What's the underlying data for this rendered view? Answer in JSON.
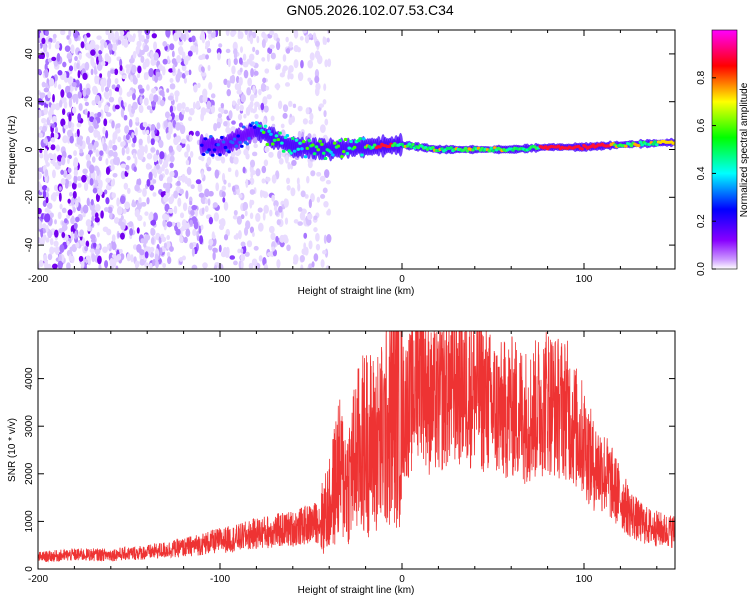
{
  "title": "GN05.2026.102.07.53.C34",
  "colors": {
    "signal": "#ee3333",
    "frame": "#000000"
  },
  "chart_data": [
    {
      "type": "heatmap",
      "name": "spectrogram",
      "xlabel": "Height of straight line (km)",
      "ylabel": "Frequency (Hz)",
      "xlim": [
        -200,
        150
      ],
      "ylim": [
        -50,
        50
      ],
      "xticks": [
        "-200",
        "-100",
        "0",
        "100"
      ],
      "xtick_values": [
        -200,
        -100,
        0,
        100
      ],
      "yticks": [
        "-40",
        "-20",
        "0",
        "20",
        "40"
      ],
      "ytick_values": [
        -40,
        -20,
        0,
        20,
        40
      ],
      "colorbar": {
        "label": "Normalized spectral amplitude",
        "range": [
          0,
          1
        ],
        "ticks": [
          "0.0",
          "0.2",
          "0.4",
          "0.6",
          "0.8"
        ],
        "tick_values": [
          0,
          0.2,
          0.4,
          0.6,
          0.8
        ],
        "colormap": [
          "#ffffff",
          "#cc99ff",
          "#8800ff",
          "#0000ff",
          "#00ffff",
          "#00ff00",
          "#ffff00",
          "#ff0000",
          "#ff00ff"
        ]
      },
      "description_series": {
        "noise_region_km": [
          -200,
          -40
        ],
        "onset_km": -80,
        "signal_trace_freq_hz": [
          [
            -110,
            2
          ],
          [
            -100,
            1
          ],
          [
            -80,
            8
          ],
          [
            -60,
            1
          ],
          [
            -40,
            0
          ],
          [
            -20,
            1
          ],
          [
            0,
            2
          ],
          [
            20,
            0
          ],
          [
            40,
            0
          ],
          [
            60,
            0
          ],
          [
            80,
            1
          ],
          [
            100,
            1
          ],
          [
            120,
            2
          ],
          [
            150,
            3
          ]
        ]
      }
    },
    {
      "type": "line",
      "name": "snr",
      "xlabel": "Height of straight line (km)",
      "ylabel": "SNR (10 * v/v)",
      "xlim": [
        -200,
        150
      ],
      "ylim": [
        0,
        5000
      ],
      "xticks": [
        "-200",
        "-100",
        "0",
        "100"
      ],
      "xtick_values": [
        -200,
        -100,
        0,
        100
      ],
      "yticks": [
        "0",
        "1000",
        "2000",
        "3000",
        "4000"
      ],
      "ytick_values": [
        0,
        1000,
        2000,
        3000,
        4000
      ],
      "series": [
        {
          "name": "SNR",
          "color": "#ee3333",
          "x": [
            -200,
            -180,
            -160,
            -140,
            -120,
            -100,
            -90,
            -80,
            -70,
            -60,
            -50,
            -45,
            -40,
            -35,
            -30,
            -25,
            -20,
            -15,
            -10,
            -5,
            0,
            5,
            10,
            15,
            20,
            25,
            30,
            35,
            40,
            45,
            50,
            55,
            60,
            65,
            70,
            75,
            80,
            85,
            90,
            95,
            100,
            105,
            110,
            115,
            120,
            125,
            130,
            135,
            140,
            145,
            150
          ],
          "y": [
            250,
            300,
            300,
            350,
            450,
            600,
            650,
            750,
            800,
            850,
            950,
            1000,
            1300,
            2100,
            1800,
            2400,
            2700,
            2600,
            2800,
            3300,
            3300,
            3500,
            4500,
            3500,
            3500,
            3800,
            3900,
            3800,
            3800,
            3600,
            3400,
            3300,
            3400,
            3300,
            3200,
            3400,
            3600,
            3400,
            3400,
            3000,
            2700,
            2200,
            2100,
            1800,
            1500,
            1200,
            1000,
            900,
            850,
            800,
            800
          ]
        }
      ]
    }
  ]
}
